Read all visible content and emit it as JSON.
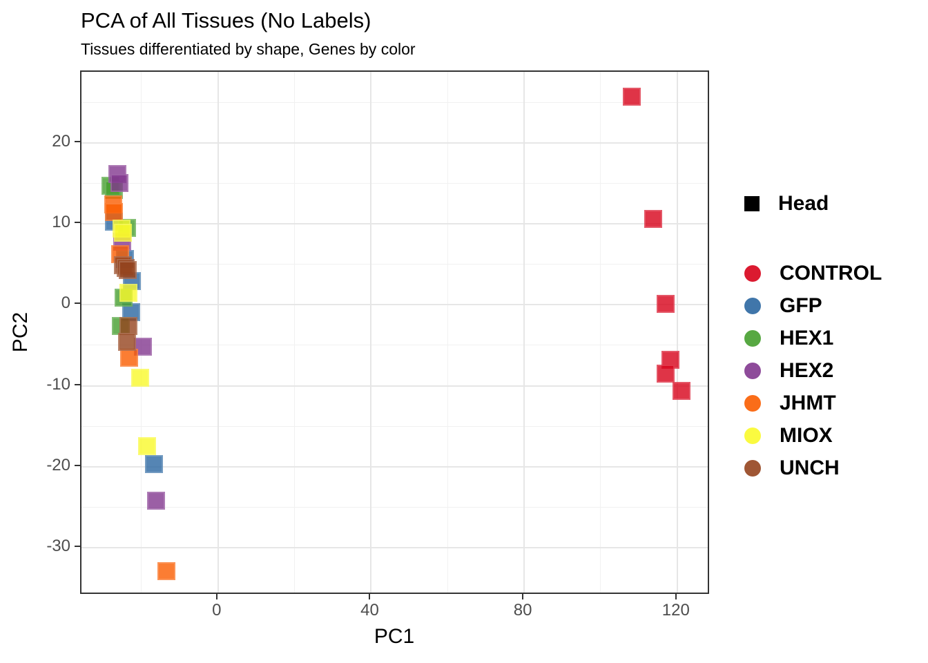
{
  "header": {
    "title": "PCA of All Tissues (No Labels)",
    "subtitle": "Tissues differentiated by shape, Genes by color"
  },
  "chart_data": {
    "type": "scatter",
    "title": "PCA of All Tissues (No Labels)",
    "subtitle": "Tissues differentiated by shape, Genes by color",
    "xlabel": "PC1",
    "ylabel": "PC2",
    "xlim": [
      -35.7,
      128.7
    ],
    "ylim": [
      -35.9,
      28.8
    ],
    "x_major_ticks": [
      0,
      40,
      80,
      120
    ],
    "y_major_ticks": [
      20,
      10,
      0,
      -10,
      -20,
      -30
    ],
    "x_minor_ticks": [
      -20,
      20,
      60,
      100
    ],
    "y_minor_ticks": [
      25,
      15,
      5,
      -5,
      -15,
      -25
    ],
    "grid": true,
    "legend_position": "right",
    "marker": "square",
    "marker_size_px": 26,
    "marker_alpha": 0.8,
    "panel_border_color": "#333333",
    "grid_major_color": "#e6e6e6",
    "grid_minor_color": "#f1f1f1",
    "axis_text_color": "#4d4d4d",
    "shape_legend": [
      {
        "label": "Head",
        "shape": "square",
        "color": "#000000"
      }
    ],
    "series": [
      {
        "name": "CONTROL",
        "color": "#D70119",
        "points": [
          [
            108.2,
            25.7
          ],
          [
            113.7,
            10.6
          ],
          [
            116.9,
            0.1
          ],
          [
            118.2,
            -6.8
          ],
          [
            116.9,
            -8.5
          ],
          [
            121.1,
            -10.6
          ]
        ]
      },
      {
        "name": "GFP",
        "color": "#2B67A1",
        "points": [
          [
            -27.2,
            10.3
          ],
          [
            -24.4,
            5.7
          ],
          [
            -22.6,
            2.9
          ],
          [
            -22.7,
            -0.9
          ],
          [
            -16.8,
            -19.7
          ]
        ]
      },
      {
        "name": "HEX1",
        "color": "#459E2E",
        "points": [
          [
            -28.1,
            14.7
          ],
          [
            -27.2,
            14.2
          ],
          [
            -23.8,
            9.5
          ],
          [
            -24.7,
            0.9
          ],
          [
            -25.4,
            -2.6
          ]
        ]
      },
      {
        "name": "HEX2",
        "color": "#82378F",
        "points": [
          [
            -26.3,
            16.2
          ],
          [
            -25.8,
            15.1
          ],
          [
            -25.1,
            7.8
          ],
          [
            -19.7,
            -5.2
          ],
          [
            -16.2,
            -24.2
          ]
        ]
      },
      {
        "name": "JHMT",
        "color": "#FA5D00",
        "points": [
          [
            -27.4,
            12.4
          ],
          [
            -27.2,
            11.5
          ],
          [
            -25.6,
            6.3
          ],
          [
            -23.3,
            -6.5
          ],
          [
            -13.5,
            -32.9
          ]
        ]
      },
      {
        "name": "MIOX",
        "color": "#F9F92B",
        "points": [
          [
            -25.3,
            9.4
          ],
          [
            -24.8,
            8.9
          ],
          [
            -23.5,
            1.5
          ],
          [
            -20.4,
            -9.0
          ],
          [
            -18.6,
            -17.5
          ]
        ]
      },
      {
        "name": "UNCH",
        "color": "#95441E",
        "points": [
          [
            -24.9,
            4.9
          ],
          [
            -24.2,
            4.6
          ],
          [
            -23.6,
            4.3
          ],
          [
            -23.5,
            -2.6
          ],
          [
            -23.8,
            -4.6
          ]
        ]
      }
    ]
  }
}
